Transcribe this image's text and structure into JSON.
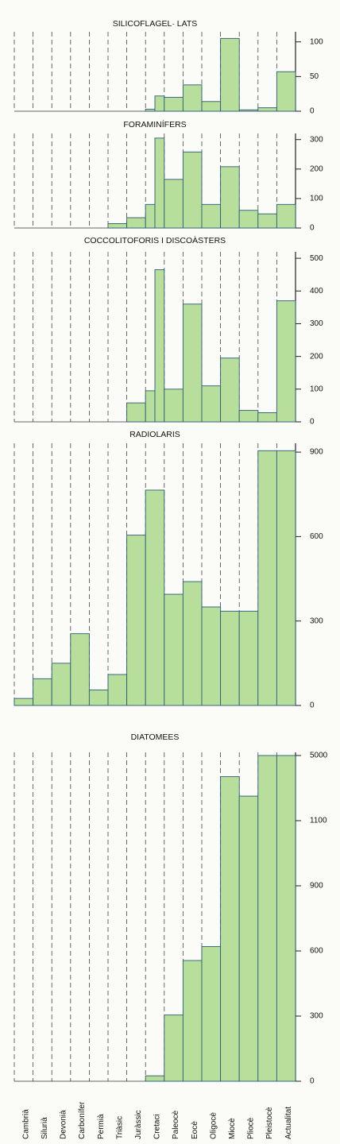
{
  "chart_data": [
    {
      "type": "bar",
      "title": "SILICOFLAGEL· LATS",
      "color": "#b8de9c",
      "values": [
        null,
        null,
        null,
        null,
        null,
        null,
        null,
        [
          3,
          22
        ],
        20,
        38,
        14,
        105,
        2,
        5,
        57
      ],
      "ylim": [
        0,
        110
      ],
      "yticks": [
        0,
        50,
        100
      ]
    },
    {
      "type": "bar",
      "title": "FORAMINÍFERS",
      "color": "#b8de9c",
      "values": [
        null,
        null,
        null,
        null,
        null,
        15,
        35,
        [
          80,
          305
        ],
        165,
        258,
        80,
        208,
        60,
        48,
        80
      ],
      "ylim": [
        0,
        310
      ],
      "yticks": [
        0,
        100,
        200,
        300
      ]
    },
    {
      "type": "bar",
      "title": "COCCOLITOFORIS I DISCOÀSTERS",
      "color": "#b8de9c",
      "values": [
        null,
        null,
        null,
        null,
        null,
        null,
        58,
        [
          95,
          465
        ],
        100,
        360,
        110,
        195,
        35,
        28,
        370
      ],
      "ylim": [
        0,
        510
      ],
      "yticks": [
        0,
        100,
        200,
        300,
        400,
        500
      ]
    },
    {
      "type": "bar",
      "title": "RADIOLARIS",
      "color": "#b8de9c",
      "values": [
        25,
        95,
        150,
        255,
        55,
        110,
        605,
        765,
        395,
        440,
        350,
        335,
        335,
        905,
        905
      ],
      "ylim": [
        0,
        920
      ],
      "yticks": [
        0,
        300,
        600,
        900
      ]
    },
    {
      "type": "bar",
      "title": "DIATOMEES",
      "color": "#b8de9c",
      "yscale": "piecewise",
      "categories": [
        "Cambrià",
        "Silurià",
        "Devonià",
        "Carbonífer",
        "Permià",
        "Triàsic",
        "Juràssic",
        "Cretaci",
        "Paleocè",
        "Eocè",
        "Oligocè",
        "Miocè",
        "Pliocè",
        "Pleistocè",
        "Actualitat"
      ],
      "values": [
        null,
        null,
        null,
        null,
        null,
        null,
        null,
        25,
        305,
        556,
        620,
        3734,
        2571,
        5000,
        5000
      ],
      "ylim": [
        0,
        5000
      ],
      "yticks": [
        0,
        300,
        600,
        900,
        1100,
        5000
      ]
    }
  ]
}
